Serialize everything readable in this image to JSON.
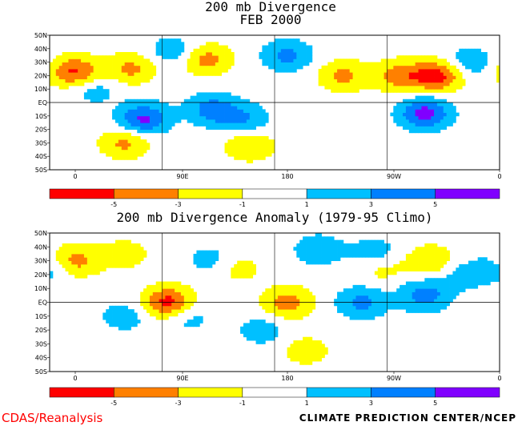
{
  "footer": {
    "left": "CDAS/Reanalysis",
    "right": "CLIMATE PREDICTION CENTER/NCEP"
  },
  "chart_data": [
    {
      "type": "heatmap",
      "title": "200 mb Divergence",
      "subtitle": "FEB 2000",
      "y_tick_labels": [
        "50N",
        "40N",
        "30N",
        "20N",
        "10N",
        "EQ",
        "10S",
        "20S",
        "30S",
        "40S",
        "50S"
      ],
      "x_tick_labels": [
        "0",
        "90E",
        "180",
        "90W",
        "0"
      ],
      "lat_range": [
        -50,
        50
      ],
      "lon_range": [
        0,
        360
      ],
      "field_maxima": [
        {
          "lon": 20,
          "lat": 23,
          "value": -5.5
        },
        {
          "lon": 65,
          "lat": 25,
          "value": -3.5
        },
        {
          "lon": 125,
          "lat": 32,
          "value": -4
        },
        {
          "lon": 235,
          "lat": 20,
          "value": -3.5
        },
        {
          "lon": 280,
          "lat": 20,
          "value": -4
        },
        {
          "lon": 310,
          "lat": 20,
          "value": -6
        },
        {
          "lon": 35,
          "lat": 10,
          "value": 2
        },
        {
          "lon": 75,
          "lat": -12,
          "value": 5.5
        },
        {
          "lon": 130,
          "lat": -5,
          "value": 4
        },
        {
          "lon": 155,
          "lat": -12,
          "value": 3
        },
        {
          "lon": 190,
          "lat": 35,
          "value": 3.5
        },
        {
          "lon": 100,
          "lat": 38,
          "value": 2.5
        },
        {
          "lon": 300,
          "lat": -8,
          "value": 6
        },
        {
          "lon": 335,
          "lat": 30,
          "value": 2.5
        },
        {
          "lon": 60,
          "lat": -30,
          "value": -3.5
        },
        {
          "lon": 160,
          "lat": -32,
          "value": -3
        }
      ]
    },
    {
      "type": "heatmap",
      "title": "200 mb Divergence Anomaly (1979-95 Climo)",
      "y_tick_labels": [
        "50N",
        "40N",
        "30N",
        "20N",
        "10N",
        "EQ",
        "10S",
        "20S",
        "30S",
        "40S",
        "50S"
      ],
      "x_tick_labels": [
        "0",
        "90E",
        "180",
        "90W",
        "0"
      ],
      "lat_range": [
        -50,
        50
      ],
      "lon_range": [
        0,
        360
      ],
      "field_maxima": [
        {
          "lon": 20,
          "lat": 30,
          "value": -4
        },
        {
          "lon": 95,
          "lat": 0,
          "value": -6
        },
        {
          "lon": 190,
          "lat": 0,
          "value": -4
        },
        {
          "lon": 305,
          "lat": 30,
          "value": -3
        },
        {
          "lon": 265,
          "lat": 25,
          "value": -2
        },
        {
          "lon": 150,
          "lat": 25,
          "value": -2
        },
        {
          "lon": 60,
          "lat": 35,
          "value": -2
        },
        {
          "lon": 205,
          "lat": -35,
          "value": -2
        },
        {
          "lon": 250,
          "lat": 0,
          "value": 3.5
        },
        {
          "lon": 300,
          "lat": 5,
          "value": 4
        },
        {
          "lon": 215,
          "lat": 38,
          "value": 2.5
        },
        {
          "lon": 260,
          "lat": 35,
          "value": 2.5
        },
        {
          "lon": 130,
          "lat": 30,
          "value": 2
        },
        {
          "lon": 110,
          "lat": -10,
          "value": 2
        },
        {
          "lon": 60,
          "lat": -10,
          "value": 2
        },
        {
          "lon": 0,
          "lat": 25,
          "value": 2
        },
        {
          "lon": 170,
          "lat": -20,
          "value": 2
        },
        {
          "lon": 330,
          "lat": 20,
          "value": 2
        }
      ]
    }
  ],
  "colorbar": {
    "colors": [
      "#ff0000",
      "#ff8000",
      "#ffff00",
      "#ffffff",
      "#00c0ff",
      "#0080ff",
      "#8000ff"
    ],
    "labels": [
      "-5",
      "-3",
      "-1",
      "1",
      "3",
      "5"
    ]
  }
}
